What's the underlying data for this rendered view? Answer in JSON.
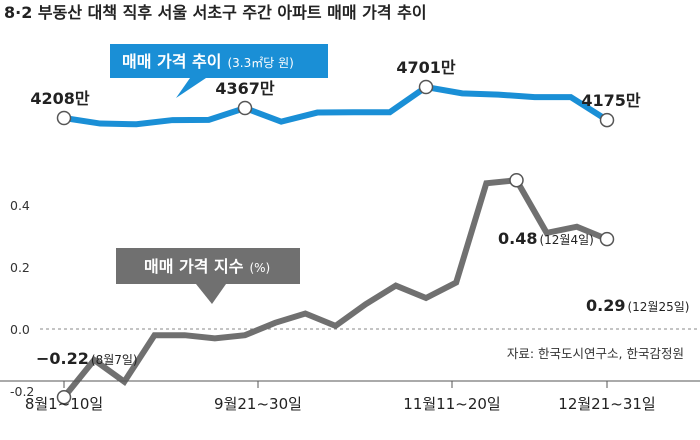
{
  "title": "8·2 부동산 대책 직후 서울 서초구 주간 아파트 매매 가격 추이",
  "source": "자료: 한국도시연구소, 한국감정원",
  "colors": {
    "price": "#1a8fd6",
    "index": "#707070",
    "label_bg_price": "#1a8fd6",
    "label_bg_index": "#707070"
  },
  "chart_data": [
    {
      "type": "line",
      "label_main": "매매 가격 추이",
      "label_unit": "(3.3㎡당 원)",
      "series": [
        {
          "values": [
            4208,
            4120,
            4108,
            4175,
            4178,
            4367,
            4150,
            4295,
            4300,
            4300,
            4701,
            4600,
            4580,
            4540,
            4540,
            4175
          ]
        }
      ],
      "annotations": [
        {
          "index": 0,
          "text": "4208만"
        },
        {
          "index": 5,
          "text": "4367만"
        },
        {
          "index": 10,
          "text": "4701만"
        },
        {
          "index": 15,
          "text": "4175만"
        }
      ]
    },
    {
      "type": "line",
      "label_main": "매매 가격 지수",
      "label_unit": "(%)",
      "series": [
        {
          "values": [
            -0.22,
            -0.1,
            -0.17,
            -0.02,
            -0.02,
            -0.03,
            -0.02,
            0.02,
            0.05,
            0.01,
            0.08,
            0.14,
            0.1,
            0.15,
            0.47,
            0.48,
            0.31,
            0.33,
            0.29
          ]
        }
      ],
      "yticks": [
        "0.4",
        "0.2",
        "0.0",
        "-0.2"
      ],
      "ylim": [
        -0.2,
        0.4
      ],
      "annotations": [
        {
          "index": 0,
          "value": "−0.22",
          "detail": "(8월7일)"
        },
        {
          "index": 15,
          "value": "0.48",
          "detail": "(12월4일)"
        },
        {
          "index": 18,
          "value": "0.29",
          "detail": "(12월25일)"
        }
      ]
    }
  ],
  "x_labels": [
    "8월1~10일",
    "9월21~30일",
    "11월11~20일",
    "12월21~31일"
  ]
}
